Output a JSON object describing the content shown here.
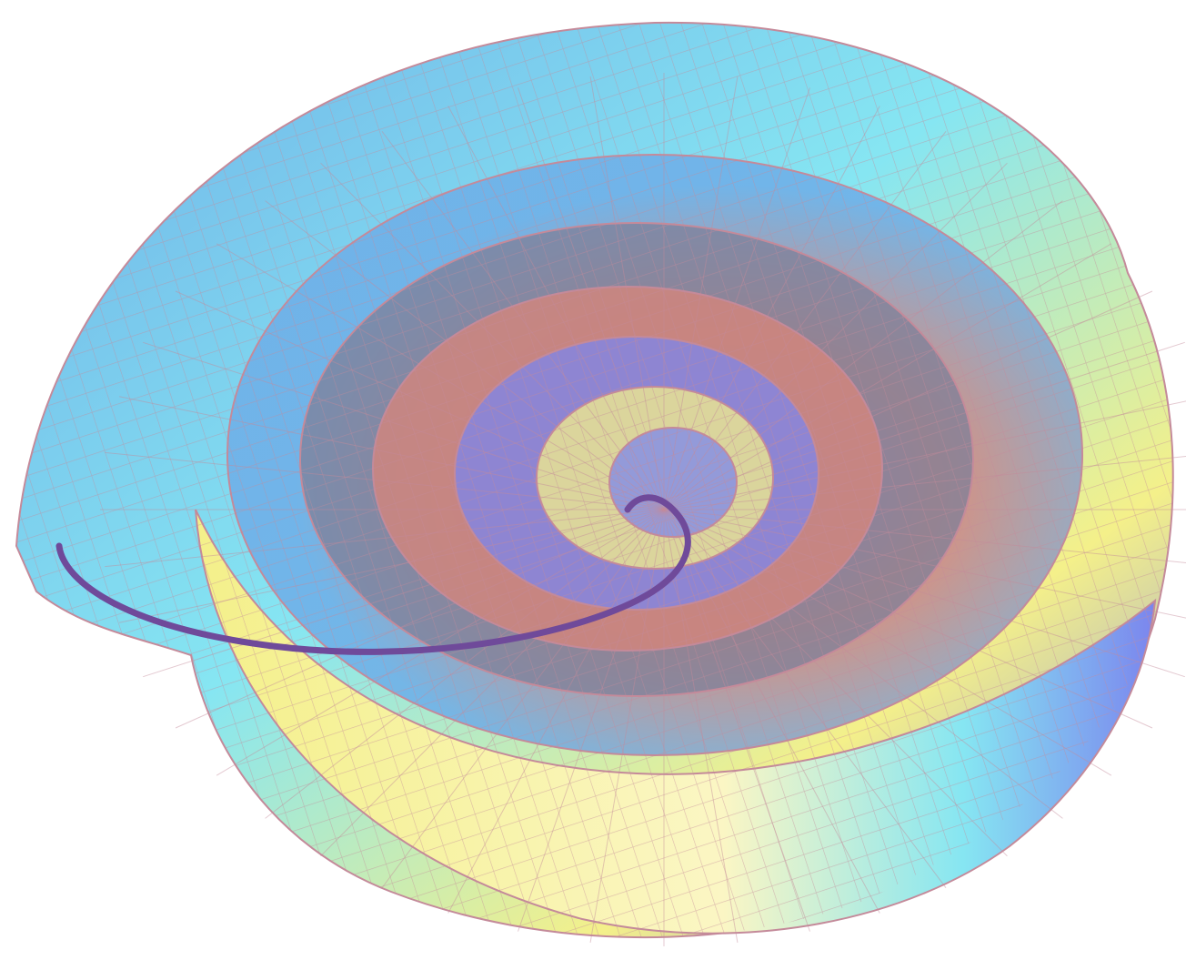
{
  "figure": {
    "subject": "",
    "surface_shape": "logarithmic-spiral-shell",
    "mesh": {
      "render_style": "wireframe-quad-mesh"
    },
    "palette": {
      "background": "#ffffff",
      "grid_line": "#c48a9a",
      "cyan": "#86e6f2",
      "sky_blue": "#6fb0e8",
      "periwinkle": "#7b85ee",
      "yellow": "#f4f08a",
      "pale_yellow": "#fbf6c4",
      "salmon": "#d9857a",
      "slate": "#7d7f98",
      "edge_curve": "#6f4a9a"
    }
  }
}
